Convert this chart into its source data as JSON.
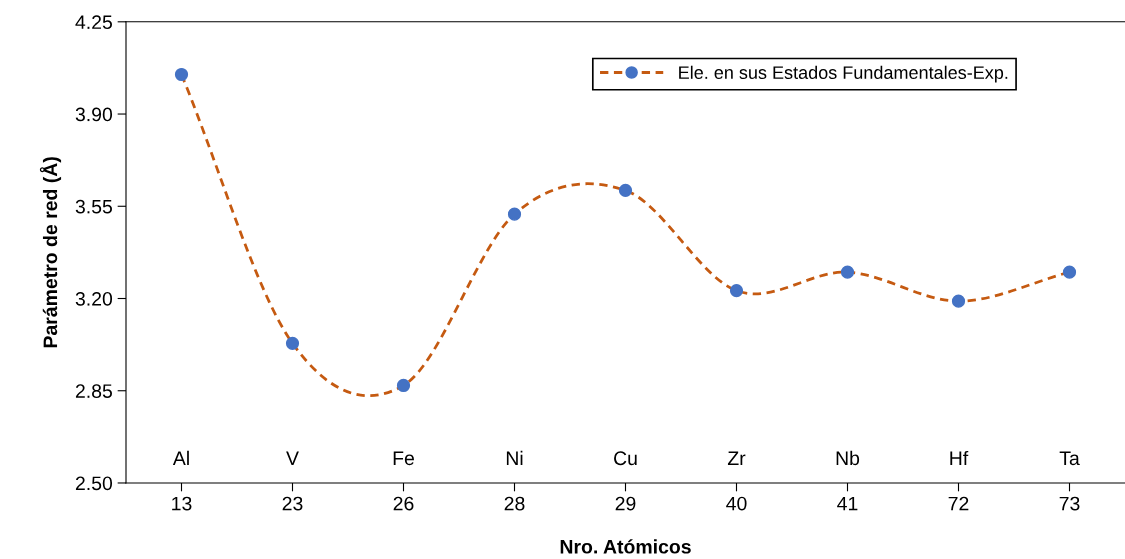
{
  "chart_data": {
    "type": "line",
    "xlabel": "Nro. Atómicos",
    "ylabel": "Parámetro de red (Å)",
    "categories": [
      "13",
      "23",
      "26",
      "28",
      "29",
      "40",
      "41",
      "72",
      "73"
    ],
    "series": [
      {
        "name": "Ele. en sus Estados Fundamentales-Exp.",
        "color": "#c55a11",
        "colors": [
          "#4472c4",
          "#4472c4",
          "#4472c4",
          "#4472c4",
          "#4472c4",
          "#4472c4",
          "#4472c4",
          "#4472c4",
          "#4472c4"
        ],
        "values": [
          4.05,
          3.03,
          2.87,
          3.52,
          3.61,
          3.23,
          3.3,
          3.19,
          3.3
        ]
      }
    ],
    "ylim": [
      2.5,
      4.25
    ],
    "yticks": [
      {
        "value": 2.5,
        "label": "2.50"
      },
      {
        "value": 2.85,
        "label": "2.85"
      },
      {
        "value": 3.2,
        "label": "3.20"
      },
      {
        "value": 3.55,
        "label": "3.55"
      },
      {
        "value": 3.9,
        "label": "3.90"
      },
      {
        "value": 4.25,
        "label": "4.25"
      }
    ],
    "annotations": [
      "Al",
      "V",
      "Fe",
      "Ni",
      "Cu",
      "Zr",
      "Nb",
      "Hf",
      "Ta"
    ],
    "grid": false,
    "legend": "top right",
    "marker": "circle",
    "line_style": "dashed"
  }
}
